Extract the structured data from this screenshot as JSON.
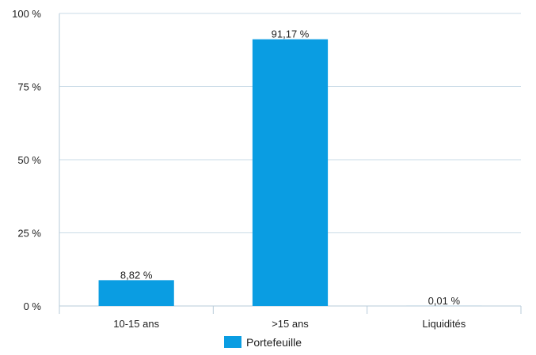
{
  "chart_data": {
    "type": "bar",
    "categories": [
      "10-15 ans",
      ">15 ans",
      "Liquidités"
    ],
    "series": [
      {
        "name": "Portefeuille",
        "values": [
          8.82,
          91.17,
          0.01
        ],
        "value_labels": [
          "8,82 %",
          "91,17 %",
          "0,01 %"
        ],
        "color": "#0a9de2"
      }
    ],
    "y_ticks": [
      0,
      25,
      50,
      75,
      100
    ],
    "y_tick_labels": [
      "0 %",
      "25 %",
      "50 %",
      "75 %",
      "100 %"
    ],
    "ylim": [
      0,
      100
    ],
    "grid": true,
    "gridline_color": "#c9dbe7",
    "axis_color": "#b7cbd9",
    "text_color": "#222222",
    "legend_position": "bottom-center"
  }
}
